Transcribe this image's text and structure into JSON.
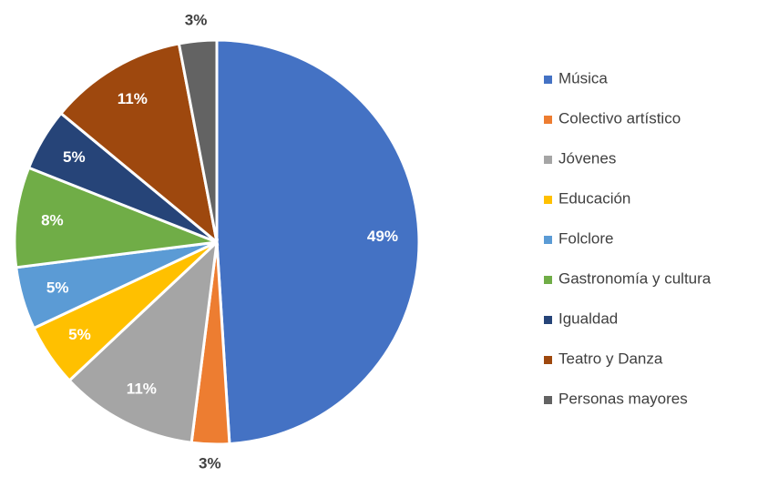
{
  "chart_data": {
    "type": "pie",
    "categories": [
      "Música",
      "Colectivo artístico",
      "Jóvenes",
      "Educación",
      "Folclore",
      "Gastronomía y cultura",
      "Igualdad",
      "Teatro y Danza",
      "Personas mayores"
    ],
    "values": [
      49,
      3,
      11,
      5,
      5,
      8,
      5,
      11,
      3
    ],
    "value_labels": [
      "49%",
      "3%",
      "11%",
      "5%",
      "5%",
      "8%",
      "5%",
      "11%",
      "3%"
    ],
    "colors": [
      "#4472c4",
      "#ed7d31",
      "#a5a5a5",
      "#ffc000",
      "#5b9bd5",
      "#70ad47",
      "#264478",
      "#9e480e",
      "#636363"
    ],
    "legend": "right"
  }
}
